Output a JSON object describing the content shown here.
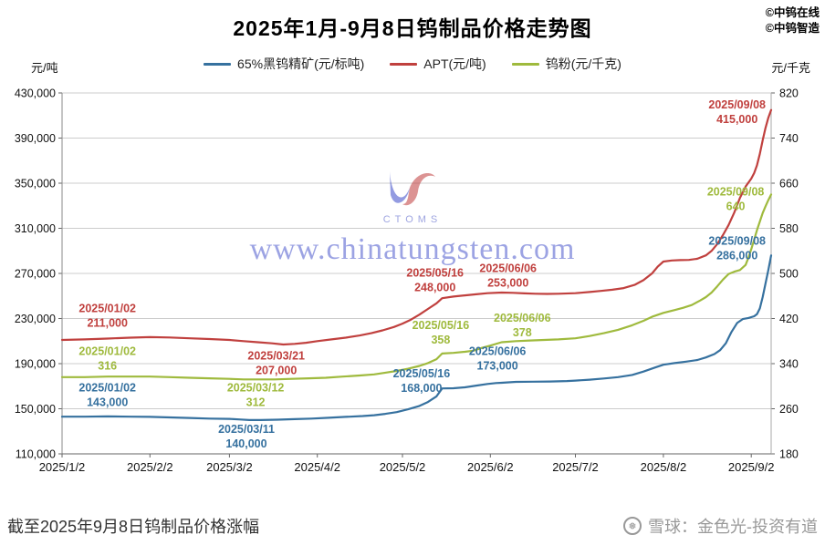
{
  "header": {
    "title": "2025年1月-9月8日钨制品价格走势图",
    "corner_line1": "©中钨在线",
    "corner_line2": "©中钨智造"
  },
  "watermark": {
    "logo_text": "CTOMS",
    "url_text": "www.chinatungsten.com",
    "color": "#3b49c9"
  },
  "footer": {
    "left_text": "截至2025年9月8日钨制品价格涨幅",
    "right_icon": "snowflake-icon",
    "right_text": "雪球：金色光-投资有道"
  },
  "chart_data": {
    "type": "line",
    "title": "2025年1月-9月8日钨制品价格走势图",
    "grid": true,
    "legend_position": "top",
    "left_axis": {
      "unit": "元/吨",
      "range": [
        110000,
        430000
      ],
      "ticks": [
        {
          "label": "430,000",
          "value": 430000
        },
        {
          "label": "390,000",
          "value": 390000
        },
        {
          "label": "350,000",
          "value": 350000
        },
        {
          "label": "310,000",
          "value": 310000
        },
        {
          "label": "270,000",
          "value": 270000
        },
        {
          "label": "230,000",
          "value": 230000
        },
        {
          "label": "190,000",
          "value": 190000
        },
        {
          "label": "150,000",
          "value": 150000
        },
        {
          "label": "110,000",
          "value": 110000
        }
      ]
    },
    "right_axis": {
      "unit": "元/千克",
      "range": [
        180,
        820
      ],
      "ticks": [
        {
          "label": "820",
          "value": 820
        },
        {
          "label": "740",
          "value": 740
        },
        {
          "label": "660",
          "value": 660
        },
        {
          "label": "580",
          "value": 580
        },
        {
          "label": "500",
          "value": 500
        },
        {
          "label": "420",
          "value": 420
        },
        {
          "label": "340",
          "value": 340
        },
        {
          "label": "260",
          "value": 260
        },
        {
          "label": "180",
          "value": 180
        }
      ]
    },
    "x_axis": {
      "domain_days": [
        0,
        250
      ],
      "ticks": [
        {
          "label": "2025/1/2",
          "day": 0
        },
        {
          "label": "2025/2/2",
          "day": 31
        },
        {
          "label": "2025/3/2",
          "day": 59
        },
        {
          "label": "2025/4/2",
          "day": 90
        },
        {
          "label": "2025/5/2",
          "day": 120
        },
        {
          "label": "2025/6/2",
          "day": 151
        },
        {
          "label": "2025/7/2",
          "day": 181
        },
        {
          "label": "2025/8/2",
          "day": 212
        },
        {
          "label": "2025/9/2",
          "day": 243
        }
      ]
    },
    "series": [
      {
        "name": "65%黑钨精矿(元/标吨)",
        "key": "concentrate",
        "color": "#36719f",
        "axis": "left",
        "points": [
          [
            0,
            143000
          ],
          [
            8,
            143000
          ],
          [
            16,
            143200
          ],
          [
            24,
            143000
          ],
          [
            31,
            142800
          ],
          [
            38,
            142300
          ],
          [
            45,
            141800
          ],
          [
            52,
            141300
          ],
          [
            59,
            141000
          ],
          [
            63,
            140500
          ],
          [
            66,
            140000
          ],
          [
            70,
            140000
          ],
          [
            76,
            140300
          ],
          [
            82,
            140800
          ],
          [
            88,
            141300
          ],
          [
            94,
            142000
          ],
          [
            100,
            142800
          ],
          [
            106,
            143500
          ],
          [
            110,
            144300
          ],
          [
            114,
            145500
          ],
          [
            118,
            147000
          ],
          [
            122,
            149500
          ],
          [
            126,
            152500
          ],
          [
            129,
            156000
          ],
          [
            132,
            161000
          ],
          [
            134,
            168000
          ],
          [
            138,
            168200
          ],
          [
            142,
            169000
          ],
          [
            146,
            170500
          ],
          [
            150,
            172000
          ],
          [
            153,
            172800
          ],
          [
            155,
            173000
          ],
          [
            160,
            173800
          ],
          [
            166,
            174000
          ],
          [
            172,
            174200
          ],
          [
            178,
            174600
          ],
          [
            181,
            175000
          ],
          [
            186,
            175800
          ],
          [
            191,
            176800
          ],
          [
            196,
            178000
          ],
          [
            201,
            180000
          ],
          [
            205,
            183000
          ],
          [
            209,
            186500
          ],
          [
            212,
            189000
          ],
          [
            216,
            190500
          ],
          [
            220,
            191800
          ],
          [
            224,
            193200
          ],
          [
            227,
            195500
          ],
          [
            230,
            198500
          ],
          [
            232,
            202000
          ],
          [
            234,
            208000
          ],
          [
            236,
            218000
          ],
          [
            238,
            226000
          ],
          [
            240,
            229500
          ],
          [
            242,
            230500
          ],
          [
            244,
            232000
          ],
          [
            245,
            234000
          ],
          [
            246,
            239000
          ],
          [
            247,
            249000
          ],
          [
            248,
            261000
          ],
          [
            249,
            273000
          ],
          [
            250,
            286000
          ]
        ]
      },
      {
        "name": "APT(元/吨)",
        "key": "apt",
        "color": "#c0403e",
        "axis": "left",
        "points": [
          [
            0,
            211000
          ],
          [
            8,
            211500
          ],
          [
            16,
            212200
          ],
          [
            24,
            213000
          ],
          [
            31,
            213500
          ],
          [
            38,
            213200
          ],
          [
            45,
            212500
          ],
          [
            52,
            211800
          ],
          [
            59,
            211000
          ],
          [
            64,
            210000
          ],
          [
            69,
            209000
          ],
          [
            74,
            208000
          ],
          [
            78,
            207000
          ],
          [
            82,
            207500
          ],
          [
            86,
            208500
          ],
          [
            90,
            210000
          ],
          [
            95,
            211500
          ],
          [
            100,
            213000
          ],
          [
            105,
            215000
          ],
          [
            109,
            217000
          ],
          [
            113,
            219500
          ],
          [
            117,
            222500
          ],
          [
            120,
            225500
          ],
          [
            123,
            229000
          ],
          [
            126,
            233500
          ],
          [
            129,
            238500
          ],
          [
            132,
            243500
          ],
          [
            134,
            248000
          ],
          [
            138,
            249500
          ],
          [
            142,
            250500
          ],
          [
            146,
            251500
          ],
          [
            150,
            252500
          ],
          [
            155,
            253000
          ],
          [
            159,
            252800
          ],
          [
            163,
            252300
          ],
          [
            167,
            252000
          ],
          [
            171,
            251800
          ],
          [
            175,
            252000
          ],
          [
            181,
            252500
          ],
          [
            186,
            253500
          ],
          [
            190,
            254500
          ],
          [
            194,
            255500
          ],
          [
            198,
            257000
          ],
          [
            202,
            260000
          ],
          [
            205,
            264000
          ],
          [
            208,
            270000
          ],
          [
            210,
            276000
          ],
          [
            212,
            280500
          ],
          [
            215,
            281500
          ],
          [
            218,
            281800
          ],
          [
            221,
            282000
          ],
          [
            224,
            283000
          ],
          [
            227,
            286000
          ],
          [
            229,
            290000
          ],
          [
            231,
            296000
          ],
          [
            233,
            304000
          ],
          [
            235,
            313000
          ],
          [
            237,
            324000
          ],
          [
            239,
            337000
          ],
          [
            241,
            347000
          ],
          [
            243,
            354000
          ],
          [
            244,
            359000
          ],
          [
            245,
            366000
          ],
          [
            246,
            376000
          ],
          [
            247,
            388000
          ],
          [
            248,
            399000
          ],
          [
            249,
            408000
          ],
          [
            250,
            415000
          ]
        ]
      },
      {
        "name": "钨粉(元/千克)",
        "key": "powder",
        "color": "#9fba3d",
        "axis": "right",
        "points": [
          [
            0,
            316
          ],
          [
            8,
            316
          ],
          [
            16,
            317
          ],
          [
            24,
            317
          ],
          [
            31,
            317
          ],
          [
            38,
            316
          ],
          [
            45,
            315
          ],
          [
            52,
            314
          ],
          [
            59,
            313
          ],
          [
            64,
            312
          ],
          [
            69,
            312
          ],
          [
            75,
            312
          ],
          [
            81,
            313
          ],
          [
            87,
            314
          ],
          [
            93,
            315
          ],
          [
            99,
            317
          ],
          [
            105,
            319
          ],
          [
            110,
            321
          ],
          [
            114,
            324
          ],
          [
            118,
            327
          ],
          [
            122,
            331
          ],
          [
            126,
            336
          ],
          [
            129,
            341
          ],
          [
            132,
            348
          ],
          [
            134,
            358
          ],
          [
            138,
            359
          ],
          [
            142,
            361
          ],
          [
            145,
            363
          ],
          [
            148,
            368
          ],
          [
            151,
            372
          ],
          [
            155,
            378
          ],
          [
            160,
            380
          ],
          [
            165,
            381
          ],
          [
            170,
            382
          ],
          [
            175,
            383
          ],
          [
            181,
            385
          ],
          [
            186,
            389
          ],
          [
            191,
            394
          ],
          [
            196,
            400
          ],
          [
            201,
            408
          ],
          [
            205,
            416
          ],
          [
            208,
            423
          ],
          [
            212,
            430
          ],
          [
            216,
            435
          ],
          [
            219,
            439
          ],
          [
            222,
            444
          ],
          [
            225,
            452
          ],
          [
            227,
            458
          ],
          [
            229,
            466
          ],
          [
            231,
            477
          ],
          [
            233,
            489
          ],
          [
            235,
            499
          ],
          [
            237,
            503
          ],
          [
            239,
            506
          ],
          [
            241,
            515
          ],
          [
            242,
            528
          ],
          [
            243,
            543
          ],
          [
            244,
            560
          ],
          [
            245,
            577
          ],
          [
            246,
            592
          ],
          [
            247,
            607
          ],
          [
            248,
            619
          ],
          [
            249,
            630
          ],
          [
            250,
            640
          ]
        ]
      }
    ],
    "annotations": [
      {
        "series": "apt",
        "date": "2025/01/02",
        "value": "211,000",
        "fx": 0.064,
        "fy": 0.615
      },
      {
        "series": "powder",
        "date": "2025/01/02",
        "value": "316",
        "fx": 0.064,
        "fy": 0.733
      },
      {
        "series": "concentrate",
        "date": "2025/01/02",
        "value": "143,000",
        "fx": 0.064,
        "fy": 0.834
      },
      {
        "series": "apt",
        "date": "2025/03/21",
        "value": "207,000",
        "fx": 0.302,
        "fy": 0.746
      },
      {
        "series": "powder",
        "date": "2025/03/12",
        "value": "312",
        "fx": 0.273,
        "fy": 0.834
      },
      {
        "series": "concentrate",
        "date": "2025/03/11",
        "value": "140,000",
        "fx": 0.26,
        "fy": 0.95
      },
      {
        "series": "apt",
        "date": "2025/05/16",
        "value": "248,000",
        "fx": 0.526,
        "fy": 0.516
      },
      {
        "series": "powder",
        "date": "2025/05/16",
        "value": "358",
        "fx": 0.534,
        "fy": 0.662
      },
      {
        "series": "concentrate",
        "date": "2025/05/16",
        "value": "168,000",
        "fx": 0.507,
        "fy": 0.796
      },
      {
        "series": "apt",
        "date": "2025/06/06",
        "value": "253,000",
        "fx": 0.629,
        "fy": 0.504
      },
      {
        "series": "powder",
        "date": "2025/06/06",
        "value": "378",
        "fx": 0.649,
        "fy": 0.642
      },
      {
        "series": "concentrate",
        "date": "2025/06/06",
        "value": "173,000",
        "fx": 0.614,
        "fy": 0.733
      },
      {
        "series": "apt",
        "date": "2025/09/08",
        "value": "415,000",
        "fx": 0.952,
        "fy": 0.05
      },
      {
        "series": "powder",
        "date": "2025/09/08",
        "value": "640",
        "fx": 0.95,
        "fy": 0.292
      },
      {
        "series": "concentrate",
        "date": "2025/09/08",
        "value": "286,000",
        "fx": 0.952,
        "fy": 0.428
      }
    ]
  }
}
